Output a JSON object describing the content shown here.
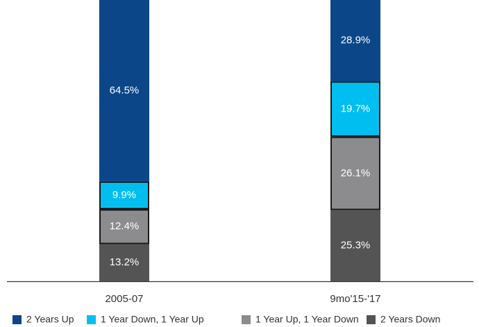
{
  "chart_data": {
    "type": "stacked_bar",
    "categories": [
      "2005-07",
      "9mo'15-'17"
    ],
    "ylim": [
      0,
      100
    ],
    "series": [
      {
        "name": "2 Years Down",
        "color": "#545454",
        "values": [
          13.2,
          25.3
        ],
        "value_labels": [
          "13.2%",
          "25.3%"
        ]
      },
      {
        "name": "1 Year Up, 1 Year Down",
        "color": "#8c8c8e",
        "border": "#1a1a1a",
        "values": [
          12.4,
          26.1
        ],
        "value_labels": [
          "12.4%",
          "26.1%"
        ]
      },
      {
        "name": "1 Year Down, 1 Year Up",
        "color": "#00bff0",
        "border": "#1a1a1a",
        "values": [
          9.9,
          19.7
        ],
        "value_labels": [
          "9.9%",
          "19.7%"
        ]
      },
      {
        "name": "2 Years Up",
        "color": "#0b4689",
        "values": [
          64.5,
          28.9
        ],
        "value_labels": [
          "64.5%",
          "28.9%"
        ]
      }
    ]
  }
}
